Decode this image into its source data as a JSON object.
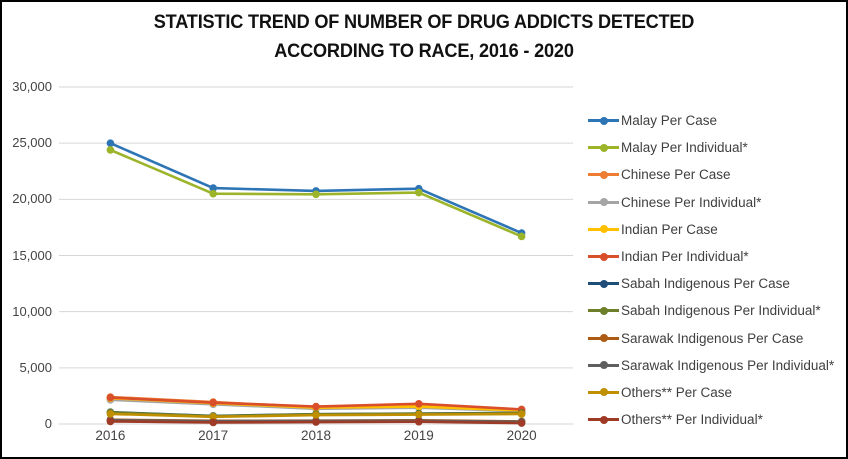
{
  "title": {
    "line1": "STATISTIC TREND OF NUMBER OF DRUG ADDICTS DETECTED",
    "line2": "ACCORDING TO RACE, 2016 - 2020"
  },
  "chart_data": {
    "type": "line",
    "categories": [
      "2016",
      "2017",
      "2018",
      "2019",
      "2020"
    ],
    "ytick_labels": [
      "30,000",
      "25,000",
      "20,000",
      "15,000",
      "10,000",
      "5,000",
      "0"
    ],
    "ylim": [
      0,
      30000
    ],
    "ytick_step": 5000,
    "grid": "horizontal",
    "legend_position": "right",
    "markers": "circle",
    "series": [
      {
        "name": "Malay Per Case",
        "color": "#2E75B6",
        "values": [
          25000,
          21000,
          20750,
          20950,
          17000
        ]
      },
      {
        "name": "Malay Per Individual*",
        "color": "#9BB42A",
        "values": [
          24400,
          20500,
          20450,
          20600,
          16700
        ]
      },
      {
        "name": "Chinese Per Case",
        "color": "#ED7D31",
        "values": [
          2400,
          1950,
          1500,
          1600,
          1250
        ]
      },
      {
        "name": "Chinese Per Individual*",
        "color": "#A5A5A5",
        "values": [
          2150,
          1750,
          1350,
          1450,
          1150
        ]
      },
      {
        "name": "Indian Per Case",
        "color": "#FFC000",
        "values": [
          2300,
          1850,
          1450,
          1550,
          1200
        ]
      },
      {
        "name": "Indian Per Individual*",
        "color": "#D94F2B",
        "values": [
          2350,
          1900,
          1550,
          1800,
          1300
        ]
      },
      {
        "name": "Sabah Indigenous Per Case",
        "color": "#1F4E79",
        "values": [
          1050,
          720,
          880,
          930,
          980
        ]
      },
      {
        "name": "Sabah Indigenous Per Individual*",
        "color": "#6E7F29",
        "values": [
          1030,
          700,
          860,
          910,
          960
        ]
      },
      {
        "name": "Sarawak Indigenous Per Case",
        "color": "#AC5A14",
        "values": [
          380,
          280,
          300,
          330,
          230
        ]
      },
      {
        "name": "Sarawak Indigenous Per Individual*",
        "color": "#5F5F5F",
        "values": [
          330,
          250,
          270,
          290,
          200
        ]
      },
      {
        "name": "Others** Per Case",
        "color": "#BF8F00",
        "values": [
          900,
          640,
          790,
          840,
          890
        ]
      },
      {
        "name": "Others** Per Individual*",
        "color": "#9E3A26",
        "values": [
          230,
          140,
          170,
          200,
          80
        ]
      }
    ]
  },
  "colors": {
    "gridline": "#D6D6D6",
    "axis_text": "#444444",
    "title_text": "#111111",
    "background": "#FFFFFF",
    "frame_border": "#000000"
  }
}
